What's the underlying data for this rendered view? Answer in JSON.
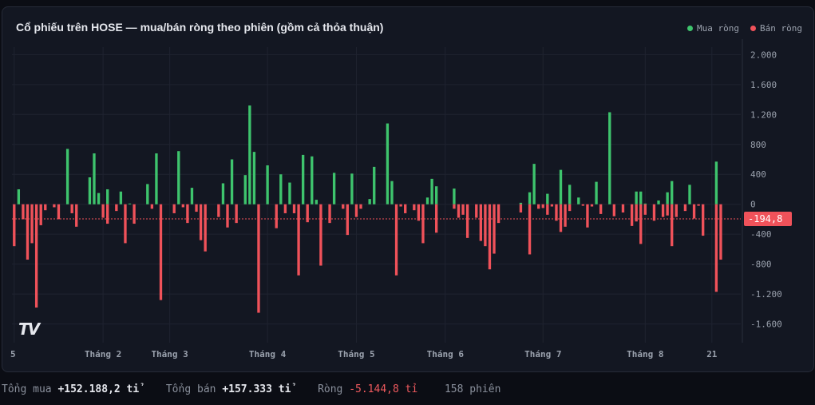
{
  "header": {
    "title": "Cổ phiếu trên HOSE — mua/bán ròng theo phiên (gồm cả thỏa thuận)"
  },
  "legend": {
    "buy_label": "Mua ròng",
    "sell_label": "Bán ròng"
  },
  "colors": {
    "buy": "#3ec46d",
    "sell": "#f0525a",
    "background": "#131722",
    "grid": "#1f2330"
  },
  "logo_icon": "tradingview-logo-icon",
  "footer": {
    "total_buy_label": "Tổng mua",
    "total_buy_value": "+152.188,2 tỉ",
    "total_sell_label": "Tổng bán",
    "total_sell_value": "+157.333 tỉ",
    "net_label": "Ròng",
    "net_value": "-5.144,8 tỉ",
    "sessions": "158 phiên"
  },
  "chart_data": {
    "type": "bar",
    "title": "Cổ phiếu trên HOSE — mua/bán ròng theo phiên (gồm cả thỏa thuận)",
    "ylim": [
      -1850,
      2100
    ],
    "yticks": [
      2000,
      1600,
      1200,
      800,
      400,
      0,
      -400,
      -800,
      -1200,
      -1600
    ],
    "ytick_labels": [
      "2.000",
      "1.600",
      "1.200",
      "800",
      "400",
      "0",
      "-400",
      "-800",
      "-1.200",
      "-1.600"
    ],
    "xtick_labels": [
      "5",
      "Tháng 2",
      "Tháng 3",
      "Tháng 4",
      "Tháng 5",
      "Tháng 6",
      "Tháng 7",
      "Tháng 8",
      "21"
    ],
    "xtick_index": [
      0,
      20,
      35,
      57,
      77,
      97,
      119,
      142,
      157
    ],
    "reference_line": {
      "value": -194.8,
      "label": "-194,8"
    },
    "grid": true,
    "legend_position": "top-right",
    "series": [
      {
        "name": "Mua ròng",
        "values": [
          0,
          200,
          0,
          0,
          0,
          0,
          0,
          0,
          0,
          0,
          0,
          0,
          740,
          0,
          0,
          0,
          0,
          360,
          680,
          150,
          0,
          200,
          0,
          0,
          170,
          0,
          10,
          0,
          0,
          0,
          270,
          0,
          680,
          0,
          0,
          0,
          0,
          710,
          0,
          0,
          220,
          0,
          0,
          0,
          0,
          0,
          0,
          280,
          0,
          600,
          0,
          0,
          390,
          1320,
          700,
          0,
          0,
          520,
          0,
          0,
          400,
          0,
          290,
          0,
          0,
          660,
          0,
          640,
          60,
          0,
          0,
          0,
          420,
          0,
          0,
          0,
          410,
          0,
          0,
          0,
          70,
          500,
          0,
          0,
          1080,
          310,
          0,
          0,
          0,
          0,
          0,
          0,
          0,
          90,
          340,
          240,
          0,
          0,
          0,
          210,
          0,
          0,
          0,
          0,
          0,
          0,
          0,
          0,
          0,
          0,
          0,
          0,
          0,
          0,
          20,
          0,
          160,
          540,
          0,
          0,
          140,
          0,
          0,
          460,
          0,
          260,
          0,
          90,
          0,
          0,
          0,
          300,
          0,
          0,
          1230,
          0,
          0,
          0,
          0,
          0,
          170,
          170,
          10,
          0,
          0,
          50,
          0,
          160,
          310,
          0,
          0,
          0,
          260,
          0,
          0,
          0,
          0,
          0,
          570,
          0,
          0,
          0,
          0,
          0
        ],
        "note": "placeholder"
      }
    ]
  }
}
